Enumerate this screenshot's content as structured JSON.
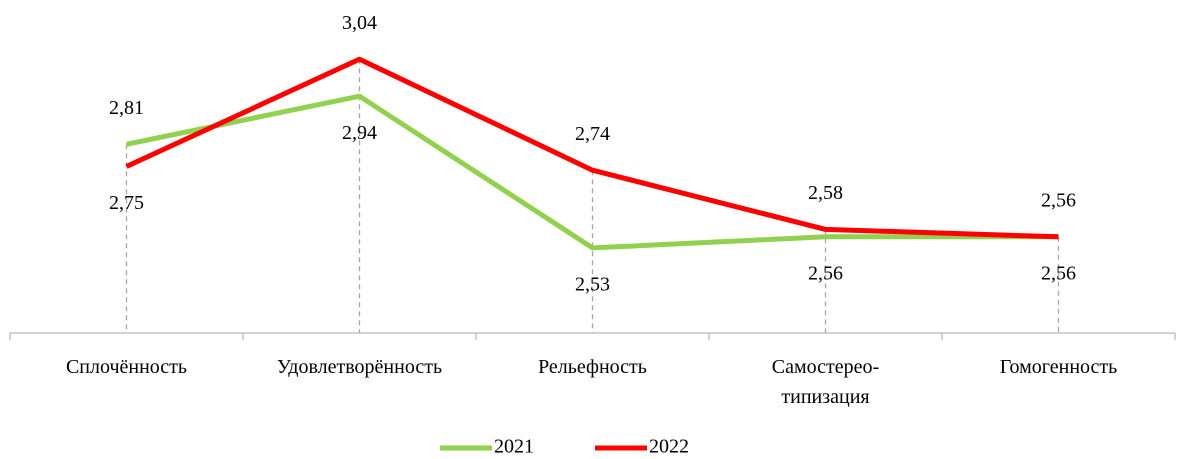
{
  "chart_data": {
    "type": "line",
    "categories": [
      "Сплочённость",
      "Удовлетворённость",
      "Рельефность",
      "Самостерео-типизация",
      "Гомогенность"
    ],
    "series": [
      {
        "name": "2021",
        "color": "#92d050",
        "values": [
          2.81,
          2.94,
          2.53,
          2.56,
          2.56
        ],
        "value_labels": [
          "2,81",
          "2,94",
          "2,53",
          "2,56",
          "2,56"
        ]
      },
      {
        "name": "2022",
        "color": "#ff0000",
        "values": [
          2.75,
          3.04,
          2.74,
          2.58,
          2.56
        ],
        "value_labels": [
          "2,75",
          "3,04",
          "2,74",
          "2,58",
          "2,56"
        ]
      }
    ],
    "ylim": [
      2.3,
      3.2
    ]
  }
}
